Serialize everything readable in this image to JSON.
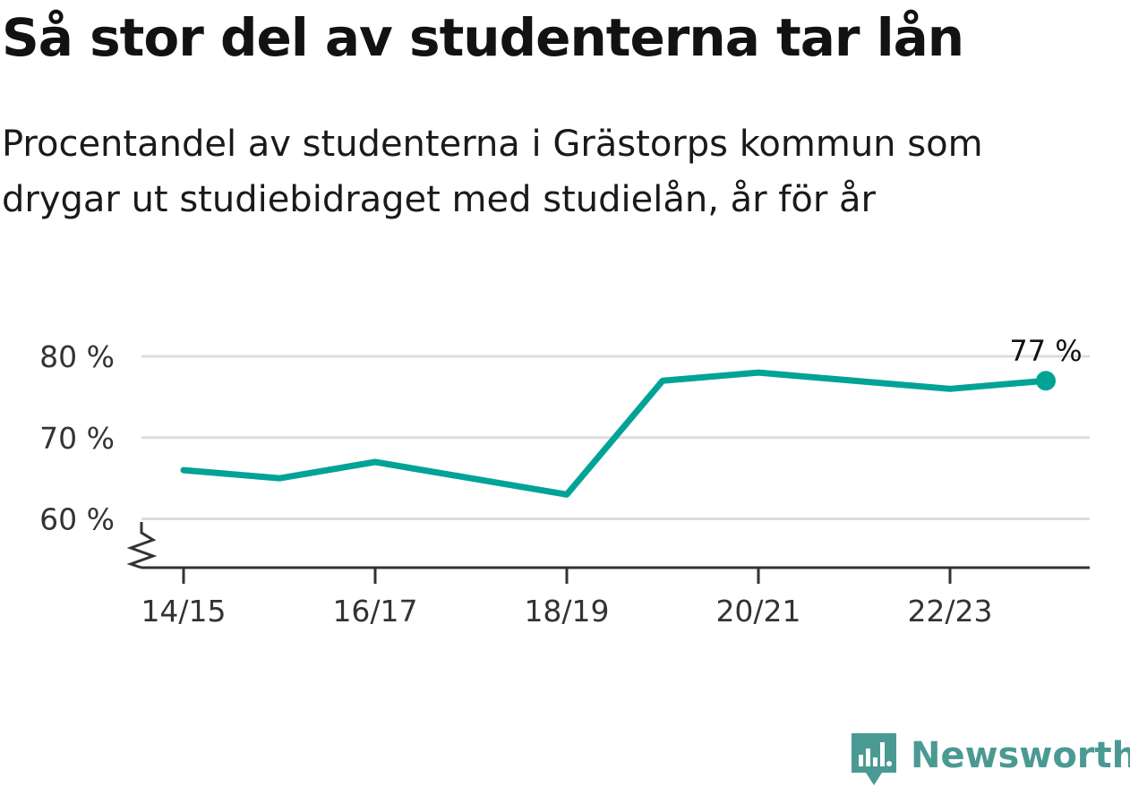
{
  "title": "Så stor del av studenterna tar lån",
  "subtitle": "Procentandel av studenterna i Grästorps kommun som drygar ut studiebidraget med studielån, år för år",
  "brand": {
    "name": "Newsworthy",
    "color": "#4a9a93",
    "icon": "newsworthy-logo-icon"
  },
  "chart_data": {
    "type": "line",
    "x": [
      "14/15",
      "15/16",
      "16/17",
      "17/18",
      "18/19",
      "19/20",
      "20/21",
      "21/22",
      "22/23",
      "23/24"
    ],
    "series": [
      {
        "values": [
          66,
          65,
          67,
          65,
          63,
          77,
          78,
          77,
          76,
          77
        ],
        "color": "#00a396"
      }
    ],
    "xticks": [
      "14/15",
      "16/17",
      "18/19",
      "20/21",
      "22/23"
    ],
    "yticks": [
      60,
      70,
      80
    ],
    "ytick_labels": [
      "60 %",
      "70 %",
      "80 %"
    ],
    "ylim": [
      54,
      80
    ],
    "grid": true,
    "end_label": "77 %",
    "y_axis_break": true
  }
}
